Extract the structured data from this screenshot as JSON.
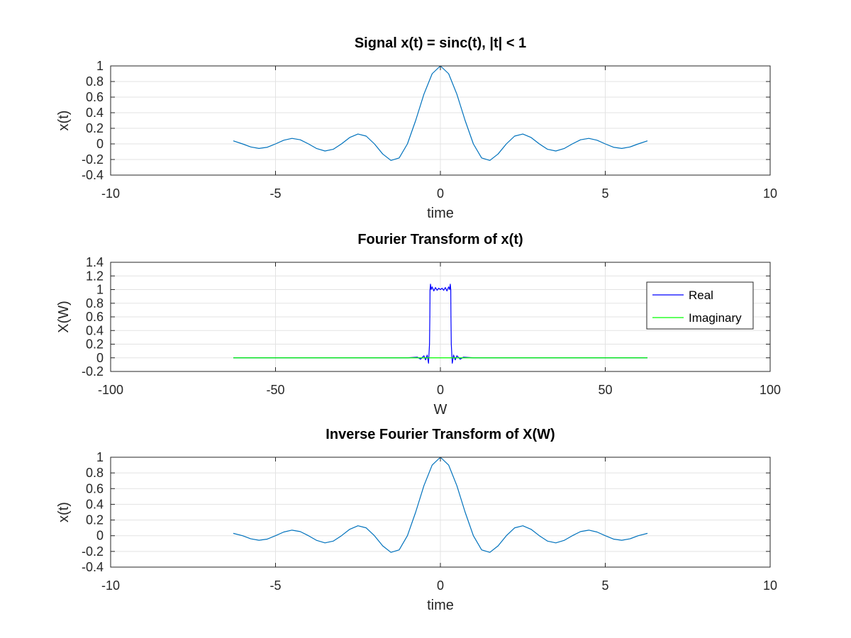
{
  "chart_data": [
    {
      "type": "line",
      "title": "Signal x(t) = sinc(t), |t| < 1",
      "xlabel": "time",
      "ylabel": "x(t)",
      "xlim": [
        -10,
        10
      ],
      "ylim": [
        -0.4,
        1
      ],
      "xticks": [
        -10,
        -5,
        0,
        5,
        10
      ],
      "yticks": [
        -0.4,
        -0.2,
        0,
        0.2,
        0.4,
        0.6,
        0.8,
        1
      ],
      "xtick_labels": [
        "-10",
        "-5",
        "0",
        "5",
        "10"
      ],
      "ytick_labels": [
        "-0.4",
        "-0.2",
        "0",
        "0.2",
        "0.4",
        "0.6",
        "0.8",
        "1"
      ],
      "grid": true,
      "series": [
        {
          "color": "#0072bd",
          "x": [
            -6.28,
            -6.0,
            -5.75,
            -5.5,
            -5.25,
            -5.0,
            -4.75,
            -4.5,
            -4.25,
            -4.0,
            -3.75,
            -3.5,
            -3.25,
            -3.0,
            -2.75,
            -2.5,
            -2.25,
            -2.0,
            -1.75,
            -1.5,
            -1.25,
            -1.0,
            -0.75,
            -0.5,
            -0.25,
            0.0,
            0.25,
            0.5,
            0.75,
            1.0,
            1.25,
            1.5,
            1.75,
            2.0,
            2.25,
            2.5,
            2.75,
            3.0,
            3.25,
            3.5,
            3.75,
            4.0,
            4.25,
            4.5,
            4.75,
            5.0,
            5.25,
            5.5,
            5.75,
            6.0,
            6.28
          ],
          "y": [
            0.039,
            -0.0,
            -0.039,
            -0.058,
            -0.043,
            -0.0,
            0.047,
            0.071,
            0.053,
            -0.0,
            -0.06,
            -0.091,
            -0.069,
            0.0,
            0.082,
            0.127,
            0.1,
            0.0,
            -0.129,
            -0.212,
            -0.18,
            0.0,
            0.3,
            0.637,
            0.9,
            1.0,
            0.9,
            0.637,
            0.3,
            0.0,
            -0.18,
            -0.212,
            -0.129,
            0.0,
            0.1,
            0.127,
            0.082,
            0.0,
            -0.069,
            -0.091,
            -0.06,
            -0.0,
            0.053,
            0.071,
            0.047,
            -0.0,
            -0.043,
            -0.058,
            -0.039,
            -0.0,
            0.039
          ]
        }
      ]
    },
    {
      "type": "line",
      "title": "Fourier Transform of x(t)",
      "xlabel": "W",
      "ylabel": "X(W)",
      "xlim": [
        -100,
        100
      ],
      "ylim": [
        -0.2,
        1.4
      ],
      "xticks": [
        -100,
        -50,
        0,
        50,
        100
      ],
      "yticks": [
        -0.2,
        0,
        0.2,
        0.4,
        0.6,
        0.8,
        1,
        1.2,
        1.4
      ],
      "xtick_labels": [
        "-100",
        "-50",
        "0",
        "50",
        "100"
      ],
      "ytick_labels": [
        "-0.2",
        "0",
        "0.2",
        "0.4",
        "0.6",
        "0.8",
        "1",
        "1.2",
        "1.4"
      ],
      "grid": true,
      "legend": "top-right",
      "series": [
        {
          "name": "Real",
          "color": "#0000ff",
          "x": [
            -62.8,
            -20.0,
            -10.0,
            -7.0,
            -6.0,
            -5.0,
            -4.5,
            -4.0,
            -3.6,
            -3.3,
            -3.2,
            -3.14,
            -3.0,
            -2.8,
            -2.5,
            -2.0,
            -1.5,
            -1.0,
            -0.5,
            0.0,
            0.5,
            1.0,
            1.5,
            2.0,
            2.5,
            2.8,
            3.0,
            3.14,
            3.2,
            3.3,
            3.6,
            4.0,
            4.5,
            5.0,
            6.0,
            7.0,
            10.0,
            20.0,
            62.8
          ],
          "y": [
            0.0,
            0.0,
            0.0,
            0.01,
            -0.02,
            0.03,
            -0.03,
            0.04,
            -0.08,
            0.2,
            0.6,
            1.0,
            1.08,
            1.0,
            1.04,
            0.98,
            1.03,
            0.99,
            1.02,
            1.0,
            1.02,
            0.99,
            1.03,
            0.98,
            1.04,
            1.0,
            1.08,
            1.0,
            0.6,
            0.2,
            -0.08,
            0.04,
            -0.03,
            0.03,
            -0.02,
            0.01,
            0.0,
            0.0,
            0.0
          ]
        },
        {
          "name": "Imaginary",
          "color": "#00ff00",
          "x": [
            -62.8,
            62.8
          ],
          "y": [
            0.0,
            0.0
          ]
        }
      ]
    },
    {
      "type": "line",
      "title": "Inverse Fourier Transform of X(W)",
      "xlabel": "time",
      "ylabel": "x(t)",
      "xlim": [
        -10,
        10
      ],
      "ylim": [
        -0.4,
        1
      ],
      "xticks": [
        -10,
        -5,
        0,
        5,
        10
      ],
      "yticks": [
        -0.4,
        -0.2,
        0,
        0.2,
        0.4,
        0.6,
        0.8,
        1
      ],
      "xtick_labels": [
        "-10",
        "-5",
        "0",
        "5",
        "10"
      ],
      "ytick_labels": [
        "-0.4",
        "-0.2",
        "0",
        "0.2",
        "0.4",
        "0.6",
        "0.8",
        "1"
      ],
      "grid": true,
      "series": [
        {
          "color": "#0072bd",
          "x": [
            -6.28,
            -6.0,
            -5.75,
            -5.5,
            -5.25,
            -5.0,
            -4.75,
            -4.5,
            -4.25,
            -4.0,
            -3.75,
            -3.5,
            -3.25,
            -3.0,
            -2.75,
            -2.5,
            -2.25,
            -2.0,
            -1.75,
            -1.5,
            -1.25,
            -1.0,
            -0.75,
            -0.5,
            -0.25,
            0.0,
            0.25,
            0.5,
            0.75,
            1.0,
            1.25,
            1.5,
            1.75,
            2.0,
            2.25,
            2.5,
            2.75,
            3.0,
            3.25,
            3.5,
            3.75,
            4.0,
            4.25,
            4.5,
            4.75,
            5.0,
            5.25,
            5.5,
            5.75,
            6.0,
            6.28
          ],
          "y": [
            0.03,
            -0.0,
            -0.039,
            -0.058,
            -0.043,
            -0.0,
            0.047,
            0.071,
            0.053,
            -0.0,
            -0.06,
            -0.091,
            -0.069,
            0.0,
            0.082,
            0.127,
            0.1,
            0.0,
            -0.129,
            -0.212,
            -0.18,
            0.0,
            0.3,
            0.637,
            0.9,
            1.0,
            0.9,
            0.637,
            0.3,
            0.0,
            -0.18,
            -0.212,
            -0.129,
            0.0,
            0.1,
            0.127,
            0.082,
            0.0,
            -0.069,
            -0.091,
            -0.06,
            -0.0,
            0.053,
            0.071,
            0.047,
            -0.0,
            -0.043,
            -0.058,
            -0.039,
            -0.0,
            0.03
          ]
        }
      ]
    }
  ]
}
